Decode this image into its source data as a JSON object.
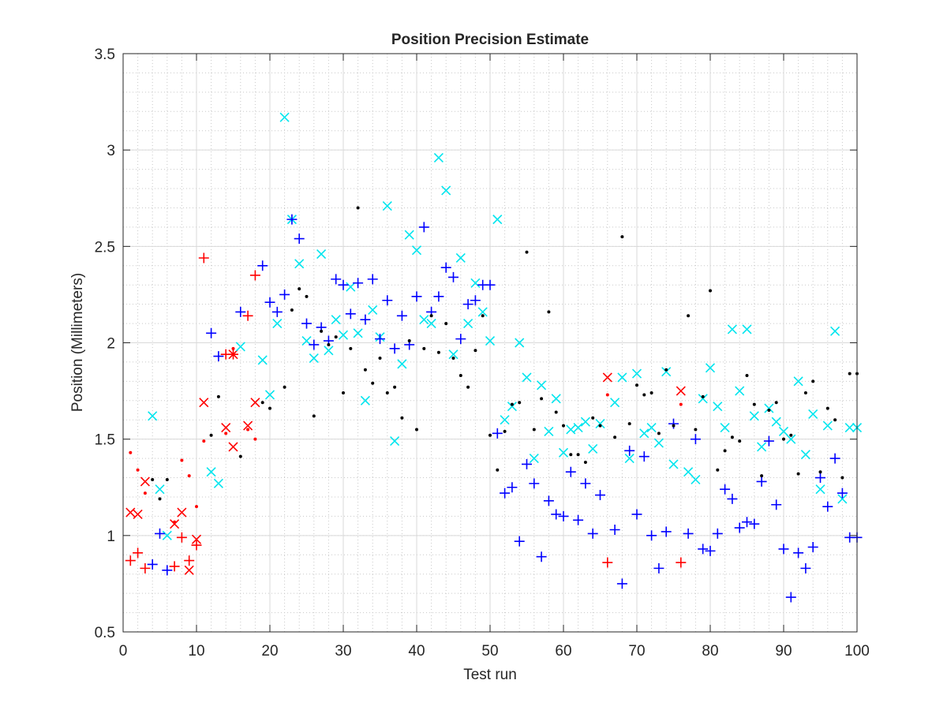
{
  "chart_data": {
    "type": "scatter",
    "title": "Position Precision Estimate",
    "xlabel": "Test run",
    "ylabel": "Position (Millimeters)",
    "xlim": [
      0,
      100
    ],
    "ylim": [
      0.5,
      3.5
    ],
    "xticks": [
      0,
      10,
      20,
      30,
      40,
      50,
      60,
      70,
      80,
      90,
      100
    ],
    "xtick_labels": [
      "0",
      "10",
      "20",
      "30",
      "40",
      "50",
      "60",
      "70",
      "80",
      "90",
      "100"
    ],
    "yticks": [
      0.5,
      1,
      1.5,
      2,
      2.5,
      3,
      3.5
    ],
    "ytick_labels": [
      "0.5",
      "1",
      "1.5",
      "2",
      "2.5",
      "3",
      "3.5"
    ],
    "grid": true,
    "minor_grid": true,
    "series": [
      {
        "marker": "x",
        "color": "#ff0000",
        "points": [
          [
            1,
            1.12
          ],
          [
            2,
            1.11
          ],
          [
            3,
            1.28
          ],
          [
            7,
            1.06
          ],
          [
            8,
            1.12
          ],
          [
            9,
            0.82
          ],
          [
            10,
            0.98
          ],
          [
            11,
            1.69
          ],
          [
            14,
            1.56
          ],
          [
            15,
            1.46
          ],
          [
            15,
            1.94
          ],
          [
            17,
            1.57
          ],
          [
            18,
            1.69
          ],
          [
            66,
            1.82
          ],
          [
            76,
            1.75
          ]
        ]
      },
      {
        "marker": "+",
        "color": "#ff0000",
        "points": [
          [
            1,
            0.87
          ],
          [
            2,
            0.91
          ],
          [
            3,
            0.83
          ],
          [
            7,
            0.84
          ],
          [
            8,
            0.99
          ],
          [
            9,
            0.87
          ],
          [
            10,
            0.95
          ],
          [
            11,
            2.44
          ],
          [
            14,
            1.94
          ],
          [
            15,
            1.94
          ],
          [
            17,
            2.14
          ],
          [
            18,
            2.35
          ],
          [
            66,
            0.86
          ],
          [
            76,
            0.86
          ]
        ]
      },
      {
        "marker": "dot",
        "color": "#ff0000",
        "points": [
          [
            1,
            1.43
          ],
          [
            2,
            1.34
          ],
          [
            3,
            1.22
          ],
          [
            7,
            1.07
          ],
          [
            8,
            1.39
          ],
          [
            9,
            1.31
          ],
          [
            10,
            1.15
          ],
          [
            11,
            1.49
          ],
          [
            14,
            1.53
          ],
          [
            15,
            1.97
          ],
          [
            17,
            1.55
          ],
          [
            18,
            1.5
          ],
          [
            66,
            1.73
          ],
          [
            76,
            1.68
          ]
        ]
      },
      {
        "marker": "x",
        "color": "#00e5ee",
        "points": [
          [
            4,
            1.62
          ],
          [
            5,
            1.24
          ],
          [
            6,
            1.0
          ],
          [
            12,
            1.33
          ],
          [
            13,
            1.27
          ],
          [
            16,
            1.98
          ],
          [
            19,
            1.91
          ],
          [
            20,
            1.73
          ],
          [
            21,
            2.1
          ],
          [
            22,
            3.17
          ],
          [
            23,
            2.64
          ],
          [
            24,
            2.41
          ],
          [
            25,
            2.01
          ],
          [
            26,
            1.92
          ],
          [
            27,
            2.46
          ],
          [
            28,
            1.96
          ],
          [
            29,
            2.12
          ],
          [
            30,
            2.04
          ],
          [
            31,
            2.29
          ],
          [
            32,
            2.05
          ],
          [
            33,
            1.7
          ],
          [
            34,
            2.17
          ],
          [
            35,
            2.03
          ],
          [
            36,
            2.71
          ],
          [
            37,
            1.49
          ],
          [
            38,
            1.89
          ],
          [
            39,
            2.56
          ],
          [
            40,
            2.48
          ],
          [
            41,
            2.12
          ],
          [
            42,
            2.1
          ],
          [
            43,
            2.96
          ],
          [
            44,
            2.79
          ],
          [
            45,
            1.94
          ],
          [
            46,
            2.44
          ],
          [
            47,
            2.1
          ],
          [
            48,
            2.31
          ],
          [
            49,
            2.16
          ],
          [
            50,
            2.01
          ],
          [
            51,
            2.64
          ],
          [
            52,
            1.6
          ],
          [
            53,
            1.67
          ],
          [
            54,
            2.0
          ],
          [
            55,
            1.82
          ],
          [
            56,
            1.4
          ],
          [
            57,
            1.78
          ],
          [
            58,
            1.54
          ],
          [
            59,
            1.71
          ],
          [
            60,
            1.43
          ],
          [
            61,
            1.55
          ],
          [
            62,
            1.56
          ],
          [
            63,
            1.59
          ],
          [
            64,
            1.45
          ],
          [
            65,
            1.58
          ],
          [
            67,
            1.69
          ],
          [
            68,
            1.82
          ],
          [
            69,
            1.4
          ],
          [
            70,
            1.84
          ],
          [
            71,
            1.53
          ],
          [
            72,
            1.56
          ],
          [
            73,
            1.48
          ],
          [
            74,
            1.85
          ],
          [
            75,
            1.37
          ],
          [
            77,
            1.33
          ],
          [
            78,
            1.29
          ],
          [
            79,
            1.71
          ],
          [
            80,
            1.87
          ],
          [
            81,
            1.67
          ],
          [
            82,
            1.56
          ],
          [
            83,
            2.07
          ],
          [
            84,
            1.75
          ],
          [
            85,
            2.07
          ],
          [
            86,
            1.62
          ],
          [
            87,
            1.46
          ],
          [
            88,
            1.66
          ],
          [
            89,
            1.59
          ],
          [
            90,
            1.54
          ],
          [
            91,
            1.5
          ],
          [
            92,
            1.8
          ],
          [
            93,
            1.42
          ],
          [
            94,
            1.63
          ],
          [
            95,
            1.24
          ],
          [
            96,
            1.57
          ],
          [
            97,
            2.06
          ],
          [
            98,
            1.19
          ],
          [
            99,
            1.56
          ],
          [
            100,
            1.56
          ]
        ]
      },
      {
        "marker": "+",
        "color": "#0000ff",
        "points": [
          [
            4,
            0.85
          ],
          [
            5,
            1.01
          ],
          [
            6,
            0.82
          ],
          [
            12,
            2.05
          ],
          [
            13,
            1.93
          ],
          [
            16,
            2.16
          ],
          [
            19,
            2.4
          ],
          [
            20,
            2.21
          ],
          [
            21,
            2.16
          ],
          [
            22,
            2.25
          ],
          [
            23,
            2.64
          ],
          [
            24,
            2.54
          ],
          [
            25,
            2.1
          ],
          [
            26,
            1.99
          ],
          [
            27,
            2.08
          ],
          [
            28,
            2.01
          ],
          [
            29,
            2.33
          ],
          [
            30,
            2.3
          ],
          [
            31,
            2.15
          ],
          [
            32,
            2.31
          ],
          [
            33,
            2.12
          ],
          [
            34,
            2.33
          ],
          [
            35,
            2.02
          ],
          [
            36,
            2.22
          ],
          [
            37,
            1.97
          ],
          [
            38,
            2.14
          ],
          [
            39,
            1.99
          ],
          [
            40,
            2.24
          ],
          [
            41,
            2.6
          ],
          [
            42,
            2.16
          ],
          [
            43,
            2.24
          ],
          [
            44,
            2.39
          ],
          [
            45,
            2.34
          ],
          [
            46,
            2.02
          ],
          [
            47,
            2.2
          ],
          [
            48,
            2.22
          ],
          [
            49,
            2.3
          ],
          [
            50,
            2.3
          ],
          [
            51,
            1.53
          ],
          [
            52,
            1.22
          ],
          [
            53,
            1.25
          ],
          [
            54,
            0.97
          ],
          [
            55,
            1.37
          ],
          [
            56,
            1.27
          ],
          [
            57,
            0.89
          ],
          [
            58,
            1.18
          ],
          [
            59,
            1.11
          ],
          [
            60,
            1.1
          ],
          [
            61,
            1.33
          ],
          [
            62,
            1.08
          ],
          [
            63,
            1.27
          ],
          [
            64,
            1.01
          ],
          [
            65,
            1.21
          ],
          [
            67,
            1.03
          ],
          [
            68,
            0.75
          ],
          [
            69,
            1.44
          ],
          [
            70,
            1.11
          ],
          [
            71,
            1.41
          ],
          [
            72,
            1.0
          ],
          [
            73,
            0.83
          ],
          [
            74,
            1.02
          ],
          [
            75,
            1.58
          ],
          [
            77,
            1.01
          ],
          [
            78,
            1.5
          ],
          [
            79,
            0.93
          ],
          [
            80,
            0.92
          ],
          [
            81,
            1.01
          ],
          [
            82,
            1.24
          ],
          [
            83,
            1.19
          ],
          [
            84,
            1.04
          ],
          [
            85,
            1.07
          ],
          [
            86,
            1.06
          ],
          [
            87,
            1.28
          ],
          [
            88,
            1.49
          ],
          [
            89,
            1.16
          ],
          [
            90,
            0.93
          ],
          [
            91,
            0.68
          ],
          [
            92,
            0.91
          ],
          [
            93,
            0.83
          ],
          [
            94,
            0.94
          ],
          [
            95,
            1.3
          ],
          [
            96,
            1.15
          ],
          [
            97,
            1.4
          ],
          [
            98,
            1.22
          ],
          [
            99,
            0.99
          ],
          [
            100,
            0.99
          ]
        ]
      },
      {
        "marker": "dot",
        "color": "#000000",
        "points": [
          [
            4,
            1.29
          ],
          [
            5,
            1.19
          ],
          [
            6,
            1.29
          ],
          [
            12,
            1.52
          ],
          [
            13,
            1.72
          ],
          [
            16,
            1.41
          ],
          [
            19,
            1.69
          ],
          [
            20,
            1.66
          ],
          [
            22,
            1.77
          ],
          [
            23,
            2.17
          ],
          [
            24,
            2.28
          ],
          [
            25,
            2.24
          ],
          [
            26,
            1.62
          ],
          [
            27,
            2.06
          ],
          [
            28,
            1.99
          ],
          [
            29,
            2.03
          ],
          [
            30,
            1.74
          ],
          [
            31,
            1.97
          ],
          [
            32,
            2.7
          ],
          [
            33,
            1.86
          ],
          [
            34,
            1.79
          ],
          [
            35,
            1.92
          ],
          [
            36,
            1.74
          ],
          [
            37,
            1.77
          ],
          [
            38,
            1.61
          ],
          [
            39,
            2.01
          ],
          [
            40,
            1.55
          ],
          [
            41,
            1.97
          ],
          [
            42,
            2.14
          ],
          [
            43,
            1.95
          ],
          [
            44,
            2.1
          ],
          [
            45,
            1.92
          ],
          [
            46,
            1.83
          ],
          [
            47,
            1.77
          ],
          [
            48,
            1.96
          ],
          [
            49,
            2.14
          ],
          [
            50,
            1.52
          ],
          [
            51,
            1.34
          ],
          [
            52,
            1.54
          ],
          [
            53,
            1.68
          ],
          [
            54,
            1.69
          ],
          [
            55,
            2.47
          ],
          [
            56,
            1.55
          ],
          [
            57,
            1.71
          ],
          [
            58,
            2.16
          ],
          [
            59,
            1.64
          ],
          [
            60,
            1.57
          ],
          [
            61,
            1.42
          ],
          [
            62,
            1.42
          ],
          [
            63,
            1.38
          ],
          [
            64,
            1.61
          ],
          [
            65,
            1.57
          ],
          [
            67,
            1.51
          ],
          [
            68,
            2.55
          ],
          [
            69,
            1.58
          ],
          [
            70,
            1.78
          ],
          [
            71,
            1.73
          ],
          [
            72,
            1.74
          ],
          [
            73,
            1.53
          ],
          [
            74,
            1.86
          ],
          [
            75,
            1.57
          ],
          [
            77,
            2.14
          ],
          [
            78,
            1.55
          ],
          [
            79,
            1.72
          ],
          [
            80,
            2.27
          ],
          [
            81,
            1.34
          ],
          [
            82,
            1.44
          ],
          [
            83,
            1.51
          ],
          [
            84,
            1.49
          ],
          [
            85,
            1.83
          ],
          [
            86,
            1.68
          ],
          [
            87,
            1.31
          ],
          [
            88,
            1.65
          ],
          [
            89,
            1.69
          ],
          [
            90,
            1.5
          ],
          [
            91,
            1.52
          ],
          [
            92,
            1.32
          ],
          [
            93,
            1.74
          ],
          [
            94,
            1.8
          ],
          [
            95,
            1.33
          ],
          [
            96,
            1.66
          ],
          [
            97,
            1.6
          ],
          [
            98,
            1.3
          ],
          [
            99,
            1.84
          ],
          [
            100,
            1.84
          ]
        ]
      }
    ]
  }
}
